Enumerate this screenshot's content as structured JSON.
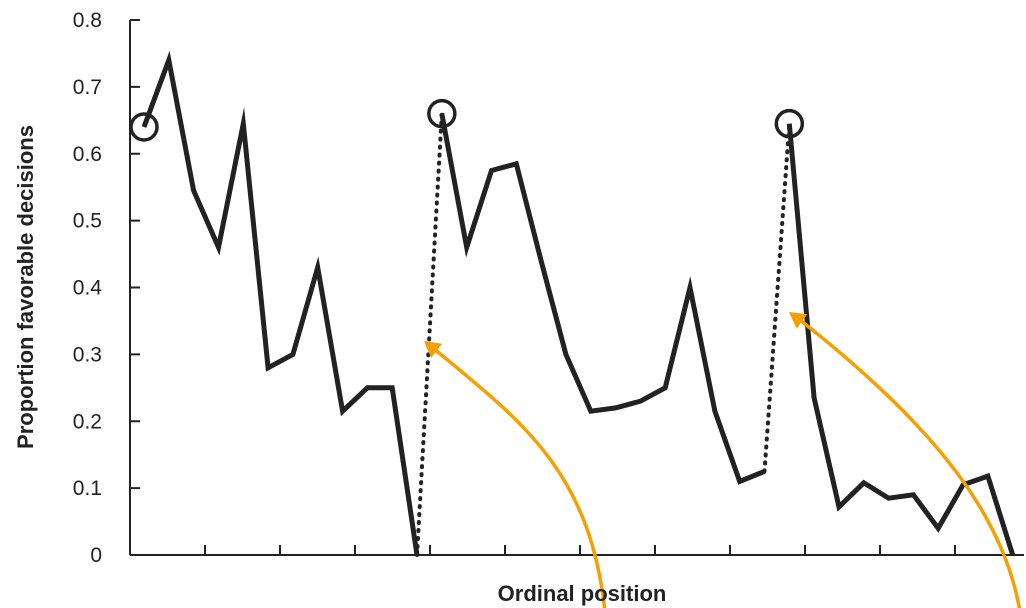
{
  "chart_data": {
    "type": "line",
    "xlabel": "Ordinal position",
    "ylabel": "Proportion favorable decisions",
    "ylim": [
      0,
      0.8
    ],
    "yticks": [
      "0",
      "0.1",
      "0.2",
      "0.3",
      "0.4",
      "0.5",
      "0.6",
      "0.7",
      "0.8"
    ],
    "grid": false,
    "legend": "none",
    "segments": [
      {
        "values": [
          0.64,
          0.74,
          0.545,
          0.46,
          0.645,
          0.28,
          0.3,
          0.43,
          0.215,
          0.25,
          0.25,
          0.0
        ],
        "x_start": 0
      },
      {
        "values": [
          0.66,
          0.46,
          0.575,
          0.585,
          0.44,
          0.3,
          0.215,
          0.22,
          0.23,
          0.25,
          0.4,
          0.215,
          0.11,
          0.125
        ],
        "x_start": 12
      },
      {
        "values": [
          0.645,
          0.235,
          0.072,
          0.108,
          0.085,
          0.09,
          0.04,
          0.105,
          0.118,
          0.0
        ],
        "x_start": 26
      }
    ],
    "gap_connectors": [
      {
        "from": [
          11,
          0.0
        ],
        "to": [
          12,
          0.66
        ]
      },
      {
        "from": [
          25,
          0.125
        ],
        "to": [
          26,
          0.645
        ]
      }
    ],
    "circled_points": [
      [
        0,
        0.64
      ],
      [
        12,
        0.66
      ],
      [
        26,
        0.645
      ]
    ],
    "colors": {
      "line": "#222222",
      "arrow": "#f5a000"
    }
  }
}
